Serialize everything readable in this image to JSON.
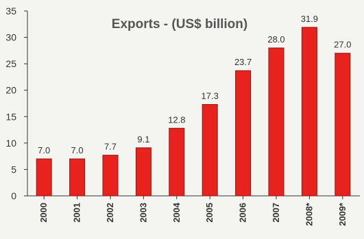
{
  "chart_data": {
    "type": "bar",
    "title": "Exports - (US$ billion)",
    "categories": [
      "2000",
      "2001",
      "2002",
      "2003",
      "2004",
      "2005",
      "2006",
      "2007",
      "2008*",
      "2009*"
    ],
    "values": [
      7.0,
      7.0,
      7.7,
      9.1,
      12.8,
      17.3,
      23.7,
      28.0,
      31.9,
      27.0
    ],
    "value_labels": [
      "7.0",
      "7.0",
      "7.7",
      "9.1",
      "12.8",
      "17.3",
      "23.7",
      "28.0",
      "31.9",
      "27.0"
    ],
    "yticks": [
      "0",
      "5",
      "10",
      "15",
      "20",
      "25",
      "30",
      "35"
    ],
    "ylim": [
      0,
      35
    ],
    "xlabel": "",
    "ylabel": "",
    "grid": false,
    "legend": false,
    "bar_color": "#e8221c",
    "bar_edge_color": "#8a1a12",
    "background": "#f4f4f1"
  }
}
